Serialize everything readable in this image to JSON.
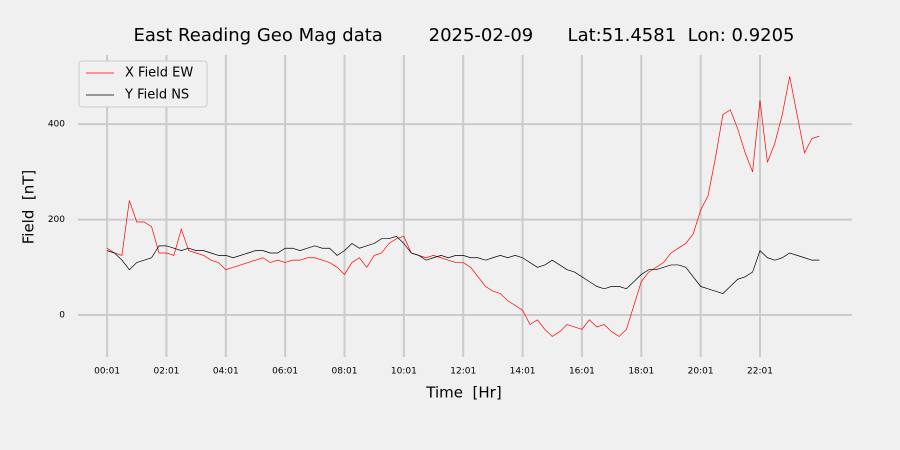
{
  "chart_data": {
    "type": "line",
    "title": "East Reading Geo Mag data        2025-02-09      Lat:51.4581  Lon: 0.9205",
    "xlabel": "Time  [Hr]",
    "ylabel": "Field  [nT]",
    "x": [
      0,
      0.25,
      0.5,
      0.75,
      1,
      1.25,
      1.5,
      1.75,
      2,
      2.25,
      2.5,
      2.75,
      3,
      3.25,
      3.5,
      3.75,
      4,
      4.25,
      4.5,
      4.75,
      5,
      5.25,
      5.5,
      5.75,
      6,
      6.25,
      6.5,
      6.75,
      7,
      7.25,
      7.5,
      7.75,
      8,
      8.25,
      8.5,
      8.75,
      9,
      9.25,
      9.5,
      9.75,
      10,
      10.25,
      10.5,
      10.75,
      11,
      11.25,
      11.5,
      11.75,
      12,
      12.25,
      12.5,
      12.75,
      13,
      13.25,
      13.5,
      13.75,
      14,
      14.25,
      14.5,
      14.75,
      15,
      15.25,
      15.5,
      15.75,
      16,
      16.25,
      16.5,
      16.75,
      17,
      17.25,
      17.5,
      17.75,
      18,
      18.25,
      18.5,
      18.75,
      19,
      19.25,
      19.5,
      19.75,
      20,
      20.25,
      20.5,
      20.75,
      21,
      21.25,
      21.5,
      21.75,
      22,
      22.25,
      22.5,
      22.75,
      23,
      23.25,
      23.5,
      23.75,
      24
    ],
    "series": [
      {
        "name": "X Field EW",
        "color": "#ff0000",
        "values": [
          140,
          130,
          125,
          240,
          195,
          195,
          185,
          130,
          130,
          125,
          180,
          135,
          130,
          125,
          115,
          110,
          95,
          100,
          105,
          110,
          115,
          120,
          110,
          115,
          110,
          115,
          115,
          120,
          120,
          115,
          110,
          100,
          85,
          110,
          120,
          100,
          125,
          130,
          150,
          160,
          165,
          130,
          125,
          120,
          125,
          120,
          115,
          110,
          110,
          100,
          80,
          60,
          50,
          45,
          30,
          20,
          10,
          -20,
          -10,
          -30,
          -45,
          -35,
          -20,
          -25,
          -30,
          -10,
          -25,
          -20,
          -35,
          -45,
          -30,
          20,
          70,
          90,
          100,
          110,
          130,
          140,
          150,
          170,
          220,
          250,
          330,
          420,
          430,
          390,
          340,
          300,
          450,
          320,
          360,
          420,
          500,
          420,
          340,
          370,
          375
        ]
      },
      {
        "name": "Y Field NS",
        "color": "#000000",
        "values": [
          135,
          130,
          115,
          95,
          110,
          115,
          120,
          145,
          145,
          140,
          135,
          140,
          135,
          135,
          130,
          125,
          125,
          120,
          125,
          130,
          135,
          135,
          130,
          130,
          140,
          140,
          135,
          140,
          145,
          140,
          140,
          125,
          135,
          150,
          140,
          145,
          150,
          160,
          160,
          165,
          150,
          130,
          125,
          115,
          120,
          125,
          120,
          125,
          125,
          120,
          120,
          115,
          120,
          125,
          120,
          125,
          120,
          110,
          100,
          105,
          115,
          105,
          95,
          90,
          80,
          70,
          60,
          55,
          60,
          60,
          55,
          70,
          85,
          95,
          95,
          100,
          105,
          105,
          100,
          80,
          60,
          55,
          50,
          45,
          60,
          75,
          80,
          90,
          135,
          120,
          115,
          120,
          130,
          125,
          120,
          115,
          115
        ]
      }
    ],
    "xlim": [
      -0.98,
      25.1
    ],
    "xticks": [
      {
        "value": 0,
        "label": "00:01"
      },
      {
        "value": 2,
        "label": "02:01"
      },
      {
        "value": 4,
        "label": "04:01"
      },
      {
        "value": 6,
        "label": "06:01"
      },
      {
        "value": 8,
        "label": "08:01"
      },
      {
        "value": 10,
        "label": "10:01"
      },
      {
        "value": 12,
        "label": "12:01"
      },
      {
        "value": 14,
        "label": "14:01"
      },
      {
        "value": 16,
        "label": "16:01"
      },
      {
        "value": 18,
        "label": "18:01"
      },
      {
        "value": 20,
        "label": "20:01"
      },
      {
        "value": 22,
        "label": "22:01"
      }
    ],
    "ylim": [
      -88,
      545
    ],
    "yticks": [
      0,
      200,
      400
    ],
    "grid": true,
    "legend": "upper left"
  }
}
